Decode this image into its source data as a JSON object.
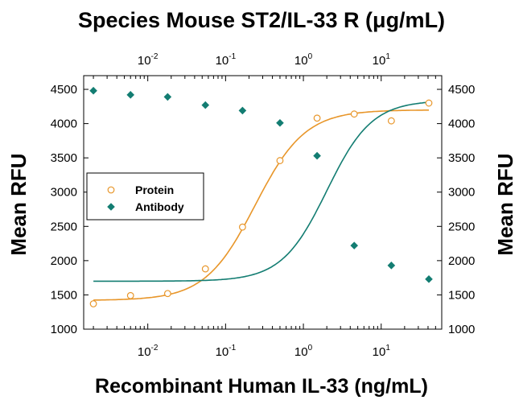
{
  "chart_data": {
    "type": "scatter",
    "title": "Species Mouse ST2/IL-33 R (μg/mL)",
    "xlabel": "Recombinant Human IL-33 (ng/mL)",
    "ylabel": "Mean RFU",
    "ylabel_right": "Mean RFU",
    "x_scale": "log",
    "x_range": [
      0.0015,
      60
    ],
    "x_ticks": [
      {
        "value": 0.01,
        "base": "10",
        "exp": "-2"
      },
      {
        "value": 0.1,
        "base": "10",
        "exp": "-1"
      },
      {
        "value": 1,
        "base": "10",
        "exp": "0"
      },
      {
        "value": 10,
        "base": "10",
        "exp": "1"
      }
    ],
    "ylim": [
      1000,
      4700
    ],
    "y_ticks": [
      "1000",
      "1500",
      "2000",
      "2500",
      "3000",
      "3500",
      "4000",
      "4500"
    ],
    "grid": false,
    "legend_position": "middle-left",
    "series": [
      {
        "name": "Protein",
        "marker": "open-circle",
        "color": "#E8962A",
        "x": [
          0.002,
          0.006,
          0.018,
          0.055,
          0.165,
          0.5,
          1.5,
          4.5,
          13.5,
          41
        ],
        "y": [
          1370,
          1490,
          1520,
          1880,
          2490,
          3460,
          4080,
          4140,
          4040,
          4300
        ],
        "fit": {
          "bottom": 1420,
          "top": 4200,
          "ec50": 0.24,
          "hill": 1.35
        }
      },
      {
        "name": "Antibody",
        "marker": "filled-diamond",
        "color": "#137D72",
        "x": [
          0.002,
          0.006,
          0.018,
          0.055,
          0.165,
          0.5,
          1.5,
          4.5,
          13.5,
          41
        ],
        "y": [
          4480,
          4420,
          4390,
          4270,
          4190,
          4010,
          3530,
          2220,
          1930,
          1730
        ],
        "fit": {
          "bottom": 1700,
          "top": 4340,
          "ec50": 2.0,
          "hill": 1.5
        }
      }
    ]
  }
}
